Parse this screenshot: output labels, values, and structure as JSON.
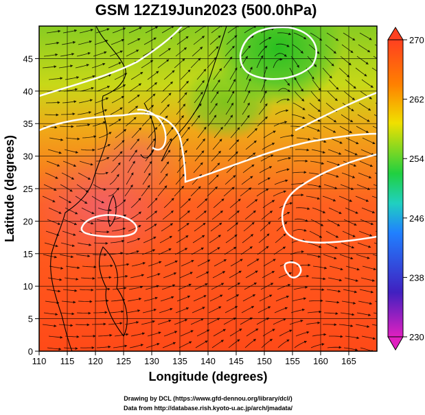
{
  "title": "GSM 12Z19Jun2023 (500.0hPa)",
  "x_axis": {
    "label": "Longitude (degrees)",
    "ticks": [
      "110",
      "115",
      "120",
      "125",
      "130",
      "135",
      "140",
      "145",
      "150",
      "155",
      "160",
      "165"
    ],
    "range": [
      110,
      170
    ]
  },
  "y_axis": {
    "label": "Latitude (degrees)",
    "ticks": [
      "0",
      "5",
      "10",
      "15",
      "20",
      "25",
      "30",
      "35",
      "40",
      "45"
    ],
    "range": [
      0,
      50
    ]
  },
  "colorbar": {
    "labels": [
      "230",
      "238",
      "246",
      "254",
      "262",
      "270"
    ],
    "range": [
      230,
      270
    ],
    "colors": [
      "#e020c0",
      "#4020c0",
      "#2080ff",
      "#20d040",
      "#f0e000",
      "#ff8000",
      "#ff4020",
      "#e05060"
    ]
  },
  "credits": {
    "line1": "Drawing by DCL (https://www.gfd-dennou.org/library/dcl/)",
    "line2": "Data from http://database.rish.kyoto-u.ac.jp/arch/jmadata/"
  },
  "colors": {
    "contour": "#ffffff",
    "grid": "#000000",
    "streamline": "#000000",
    "coast": "#000000"
  },
  "icons": {
    "colorbar_top": "triangle-up-icon",
    "colorbar_bottom": "triangle-down-icon"
  }
}
